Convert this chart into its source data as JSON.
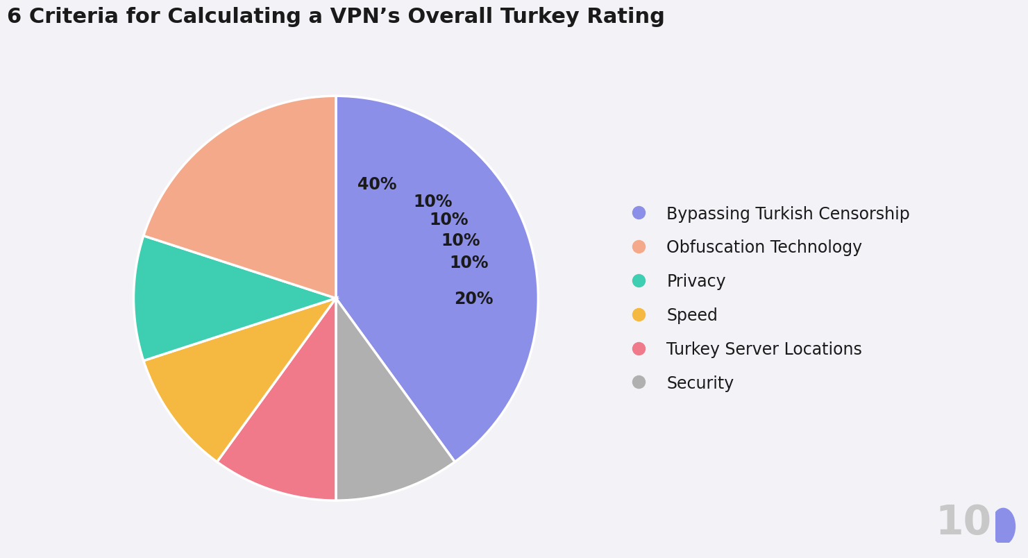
{
  "title": "6 Criteria for Calculating a VPN’s Overall Turkey Rating",
  "labels": [
    "Bypassing Turkish Censorship",
    "Obfuscation Technology",
    "Privacy",
    "Speed",
    "Turkey Server Locations",
    "Security"
  ],
  "colors": [
    "#8B8FE8",
    "#F4A98A",
    "#3ECFB2",
    "#F5B942",
    "#F07A8A",
    "#B0B0B0"
  ],
  "background_color": "#F2F2F7",
  "title_fontsize": 22,
  "legend_fontsize": 17,
  "autopct_fontsize": 17,
  "plot_order": [
    0,
    5,
    4,
    3,
    2,
    1
  ],
  "plot_values": [
    40,
    10,
    10,
    10,
    10,
    20
  ],
  "watermark_color": "#C8C8C8",
  "watermark_dot_color": "#8B8FE8"
}
